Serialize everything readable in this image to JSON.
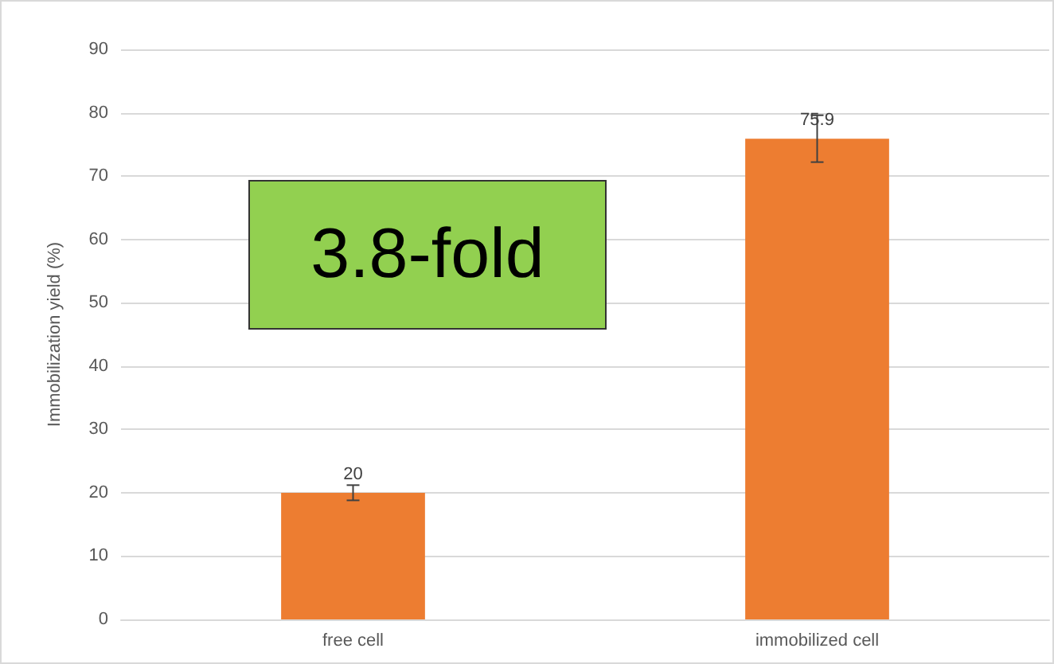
{
  "chart_data": {
    "type": "bar",
    "ylabel": "Immobilization yield (%)",
    "categories": [
      "free cell",
      "immobilized cell"
    ],
    "values": [
      20,
      75.9
    ],
    "color": "#ed7d31",
    "errors": [
      1.2,
      3.7
    ],
    "data_labels": true,
    "ylim": [
      0,
      90
    ],
    "yticks": [
      0,
      10,
      20,
      30,
      40,
      50,
      60,
      70,
      80,
      90
    ],
    "grid": "y",
    "annotations": [
      "3.8-fold"
    ]
  }
}
